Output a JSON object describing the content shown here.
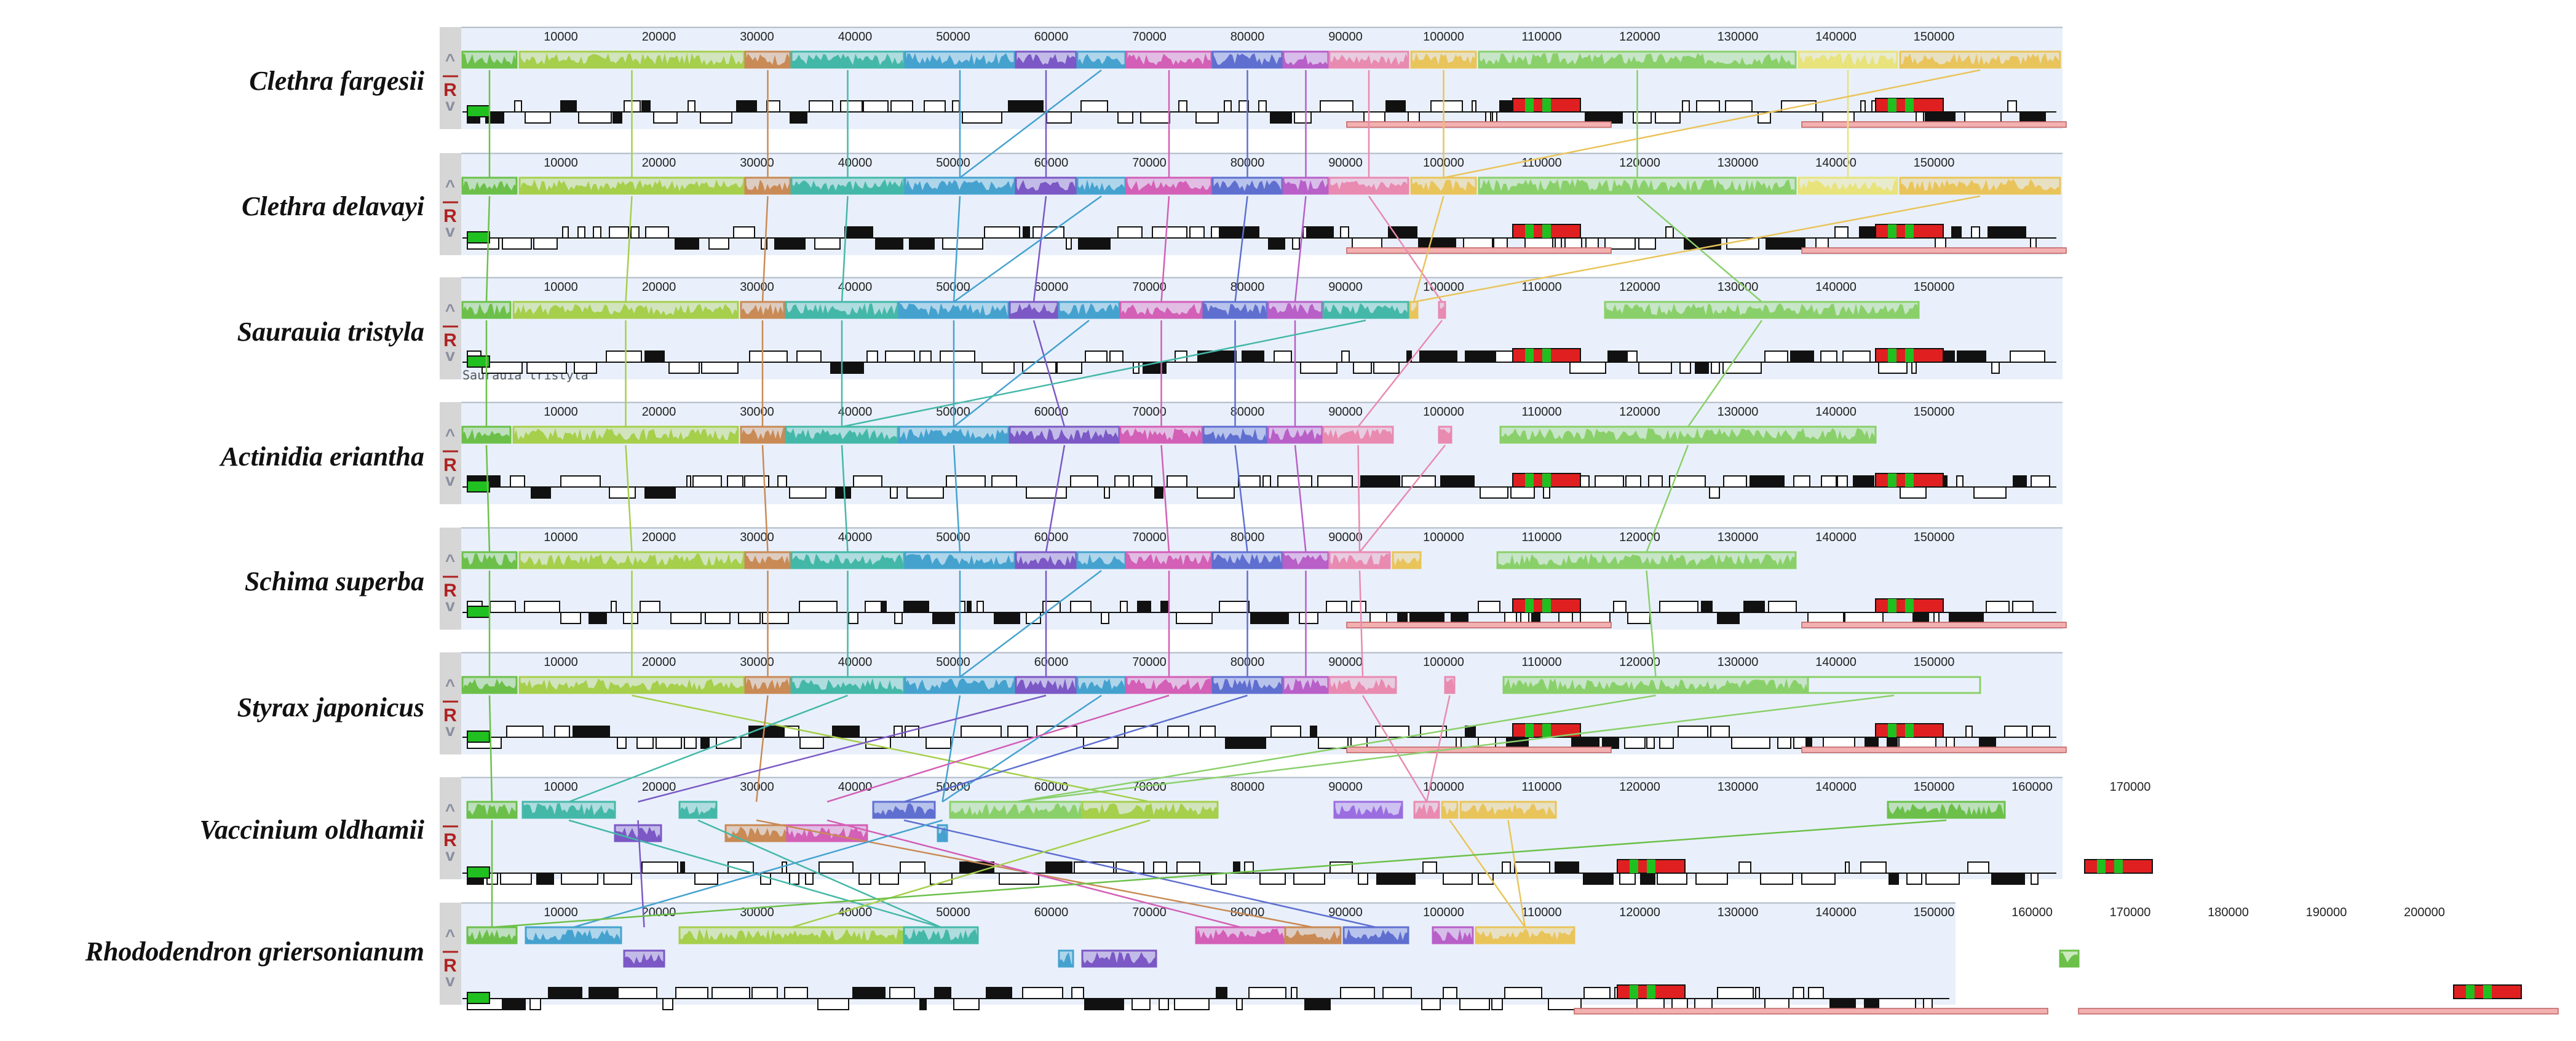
{
  "colors": {
    "panel_bg": "#e9f0fb",
    "panel_line": "#aeb8c4",
    "sidebar": "#d6d6d6",
    "ctrl_arrow": "#8a8fa0",
    "ctrl_r": "#b02020",
    "gene_box": "#111111",
    "rrna": "#e02020",
    "trna": "#20c020",
    "ir_bar": "#f3b0b0"
  },
  "controls": {
    "up_arrow": "^",
    "reverse": "R",
    "down_arrow": "v"
  },
  "lcb_palette": [
    "#6cc04a",
    "#a6cf4b",
    "#c98a55",
    "#44b8a8",
    "#45a2cf",
    "#7b58c5",
    "#5f6fd0",
    "#d35fb6",
    "#b85fc8",
    "#9b6de0",
    "#e9c45a",
    "#e98ab0",
    "#8ad06a",
    "#e8e37a"
  ],
  "genomes": [
    {
      "name": "Clethra fargesii",
      "ticks": [
        "10000",
        "20000",
        "30000",
        "40000",
        "50000",
        "60000",
        "70000",
        "80000",
        "90000",
        "100000",
        "110000",
        "120000",
        "130000",
        "140000",
        "150000"
      ]
    },
    {
      "name": "Clethra delavayi",
      "ticks": [
        "10000",
        "20000",
        "30000",
        "40000",
        "50000",
        "60000",
        "70000",
        "80000",
        "90000",
        "100000",
        "110000",
        "120000",
        "130000",
        "140000",
        "150000"
      ]
    },
    {
      "name": "Saurauia tristyla",
      "ticks": [
        "10000",
        "20000",
        "30000",
        "40000",
        "50000",
        "60000",
        "70000",
        "80000",
        "90000",
        "100000",
        "110000",
        "120000",
        "130000",
        "140000",
        "150000"
      ],
      "caption": "Saurauia tristyla"
    },
    {
      "name": "Actinidia eriantha",
      "ticks": [
        "10000",
        "20000",
        "30000",
        "40000",
        "50000",
        "60000",
        "70000",
        "80000",
        "90000",
        "100000",
        "110000",
        "120000",
        "130000",
        "140000",
        "150000"
      ]
    },
    {
      "name": "Schima superba",
      "ticks": [
        "10000",
        "20000",
        "30000",
        "40000",
        "50000",
        "60000",
        "70000",
        "80000",
        "90000",
        "100000",
        "110000",
        "120000",
        "130000",
        "140000",
        "150000"
      ]
    },
    {
      "name": "Styrax japonicus",
      "ticks": [
        "10000",
        "20000",
        "30000",
        "40000",
        "50000",
        "60000",
        "70000",
        "80000",
        "90000",
        "100000",
        "110000",
        "120000",
        "130000",
        "140000",
        "150000"
      ]
    },
    {
      "name": "Vaccinium oldhamii",
      "ticks": [
        "10000",
        "20000",
        "30000",
        "40000",
        "50000",
        "60000",
        "70000",
        "80000",
        "90000",
        "100000",
        "110000",
        "120000",
        "130000",
        "140000",
        "150000",
        "160000",
        "170000"
      ]
    },
    {
      "name": "Rhododendron griersonianum",
      "ticks": [
        "10000",
        "20000",
        "30000",
        "40000",
        "50000",
        "60000",
        "70000",
        "80000",
        "90000",
        "100000",
        "110000",
        "120000",
        "130000",
        "140000",
        "150000",
        "160000",
        "170000",
        "180000",
        "190000",
        "200000"
      ]
    }
  ]
}
